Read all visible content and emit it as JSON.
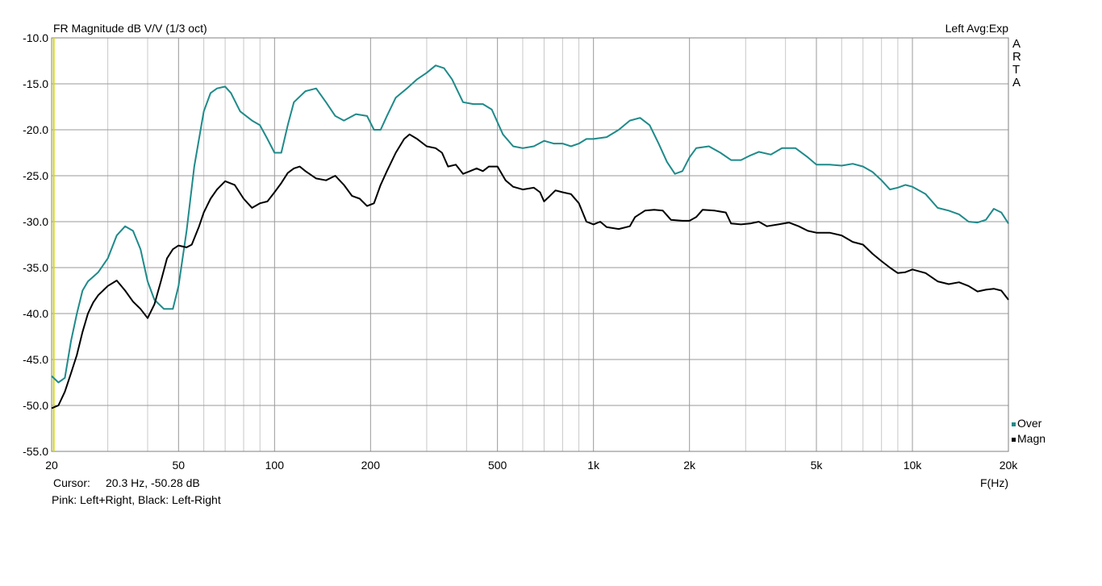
{
  "header": {
    "title": "FR Magnitude dB V/V (1/3 oct)",
    "right_info": "Left  Avg:Exp"
  },
  "brand": [
    "A",
    "R",
    "T",
    "A"
  ],
  "footer": {
    "cursor_label": "Cursor:",
    "cursor_value": "20.3 Hz, -50.28 dB",
    "note": "Pink: Left+Right, Black: Left-Right"
  },
  "legend": [
    {
      "name": "Over",
      "color": "#1f8a8a"
    },
    {
      "name": "Magn",
      "color": "#000000"
    }
  ],
  "chart_data": {
    "type": "line",
    "title": "FR Magnitude dB V/V (1/3 oct)",
    "xlabel": "F(Hz)",
    "ylabel": "",
    "x_scale": "log",
    "xlim": [
      20,
      20000
    ],
    "ylim": [
      -55,
      -10
    ],
    "grid": true,
    "legend_position": "bottom-right",
    "x_ticks": [
      20,
      50,
      100,
      200,
      500,
      1000,
      2000,
      5000,
      10000,
      20000
    ],
    "x_tick_labels": [
      "20",
      "50",
      "100",
      "200",
      "500",
      "1k",
      "2k",
      "5k",
      "10k",
      "20k"
    ],
    "y_ticks": [
      -10,
      -15,
      -20,
      -25,
      -30,
      -35,
      -40,
      -45,
      -50,
      -55
    ],
    "y_tick_labels": [
      "-10.0",
      "-15.0",
      "-20.0",
      "-25.0",
      "-30.0",
      "-35.0",
      "-40.0",
      "-45.0",
      "-50.0",
      "-55.0"
    ],
    "cursor": {
      "x": 20.3,
      "color": "#d8d800"
    },
    "series": [
      {
        "name": "Over",
        "color": "#1f8a8a",
        "points": [
          [
            20,
            -46.8
          ],
          [
            21,
            -47.5
          ],
          [
            22,
            -47.0
          ],
          [
            23,
            -43.0
          ],
          [
            24,
            -40.0
          ],
          [
            25,
            -37.5
          ],
          [
            26,
            -36.5
          ],
          [
            28,
            -35.5
          ],
          [
            30,
            -34.0
          ],
          [
            32,
            -31.5
          ],
          [
            34,
            -30.5
          ],
          [
            36,
            -31.0
          ],
          [
            38,
            -33.0
          ],
          [
            40,
            -36.5
          ],
          [
            42,
            -38.5
          ],
          [
            45,
            -39.5
          ],
          [
            48,
            -39.5
          ],
          [
            50,
            -37.0
          ],
          [
            53,
            -31.0
          ],
          [
            56,
            -24.0
          ],
          [
            60,
            -18.0
          ],
          [
            63,
            -16.0
          ],
          [
            66,
            -15.5
          ],
          [
            70,
            -15.3
          ],
          [
            73,
            -16.0
          ],
          [
            78,
            -18.0
          ],
          [
            85,
            -19.0
          ],
          [
            90,
            -19.5
          ],
          [
            95,
            -21.0
          ],
          [
            100,
            -22.5
          ],
          [
            105,
            -22.5
          ],
          [
            110,
            -19.5
          ],
          [
            115,
            -17.0
          ],
          [
            125,
            -15.8
          ],
          [
            135,
            -15.5
          ],
          [
            145,
            -17.0
          ],
          [
            155,
            -18.5
          ],
          [
            165,
            -19.0
          ],
          [
            180,
            -18.3
          ],
          [
            195,
            -18.5
          ],
          [
            205,
            -20.0
          ],
          [
            215,
            -20.0
          ],
          [
            225,
            -18.5
          ],
          [
            240,
            -16.5
          ],
          [
            260,
            -15.5
          ],
          [
            280,
            -14.5
          ],
          [
            300,
            -13.8
          ],
          [
            320,
            -13.0
          ],
          [
            340,
            -13.3
          ],
          [
            360,
            -14.5
          ],
          [
            390,
            -17.0
          ],
          [
            420,
            -17.2
          ],
          [
            450,
            -17.2
          ],
          [
            480,
            -17.8
          ],
          [
            520,
            -20.5
          ],
          [
            560,
            -21.8
          ],
          [
            600,
            -22.0
          ],
          [
            650,
            -21.8
          ],
          [
            700,
            -21.2
          ],
          [
            750,
            -21.5
          ],
          [
            800,
            -21.5
          ],
          [
            850,
            -21.8
          ],
          [
            900,
            -21.5
          ],
          [
            950,
            -21.0
          ],
          [
            1000,
            -21.0
          ],
          [
            1100,
            -20.8
          ],
          [
            1200,
            -20.0
          ],
          [
            1300,
            -19.0
          ],
          [
            1400,
            -18.7
          ],
          [
            1500,
            -19.5
          ],
          [
            1600,
            -21.5
          ],
          [
            1700,
            -23.5
          ],
          [
            1800,
            -24.8
          ],
          [
            1900,
            -24.5
          ],
          [
            2000,
            -23.0
          ],
          [
            2100,
            -22.0
          ],
          [
            2300,
            -21.8
          ],
          [
            2500,
            -22.5
          ],
          [
            2700,
            -23.3
          ],
          [
            2900,
            -23.3
          ],
          [
            3100,
            -22.8
          ],
          [
            3300,
            -22.4
          ],
          [
            3600,
            -22.7
          ],
          [
            3900,
            -22.0
          ],
          [
            4300,
            -22.0
          ],
          [
            4700,
            -23.0
          ],
          [
            5000,
            -23.8
          ],
          [
            5500,
            -23.8
          ],
          [
            6000,
            -23.9
          ],
          [
            6500,
            -23.7
          ],
          [
            7000,
            -24.0
          ],
          [
            7500,
            -24.6
          ],
          [
            8000,
            -25.5
          ],
          [
            8500,
            -26.5
          ],
          [
            9000,
            -26.3
          ],
          [
            9500,
            -26.0
          ],
          [
            10000,
            -26.2
          ],
          [
            11000,
            -27.0
          ],
          [
            12000,
            -28.5
          ],
          [
            13000,
            -28.8
          ],
          [
            14000,
            -29.2
          ],
          [
            15000,
            -30.0
          ],
          [
            16000,
            -30.1
          ],
          [
            17000,
            -29.8
          ],
          [
            18000,
            -28.6
          ],
          [
            19000,
            -29.0
          ],
          [
            20000,
            -30.2
          ]
        ]
      },
      {
        "name": "Magn",
        "color": "#000000",
        "points": [
          [
            20,
            -50.3
          ],
          [
            21,
            -50.0
          ],
          [
            22,
            -48.5
          ],
          [
            23,
            -46.5
          ],
          [
            24,
            -44.5
          ],
          [
            25,
            -42.0
          ],
          [
            26,
            -40.0
          ],
          [
            27,
            -38.8
          ],
          [
            28,
            -38.0
          ],
          [
            30,
            -37.0
          ],
          [
            32,
            -36.4
          ],
          [
            34,
            -37.5
          ],
          [
            36,
            -38.7
          ],
          [
            38,
            -39.5
          ],
          [
            40,
            -40.5
          ],
          [
            42,
            -39.0
          ],
          [
            44,
            -36.5
          ],
          [
            46,
            -34.0
          ],
          [
            48,
            -33.0
          ],
          [
            50,
            -32.6
          ],
          [
            53,
            -32.8
          ],
          [
            55,
            -32.5
          ],
          [
            58,
            -30.5
          ],
          [
            60,
            -29.0
          ],
          [
            63,
            -27.5
          ],
          [
            66,
            -26.5
          ],
          [
            70,
            -25.6
          ],
          [
            75,
            -26.0
          ],
          [
            80,
            -27.5
          ],
          [
            85,
            -28.5
          ],
          [
            90,
            -28.0
          ],
          [
            95,
            -27.8
          ],
          [
            100,
            -26.8
          ],
          [
            105,
            -25.8
          ],
          [
            110,
            -24.7
          ],
          [
            115,
            -24.2
          ],
          [
            120,
            -24.0
          ],
          [
            125,
            -24.5
          ],
          [
            135,
            -25.3
          ],
          [
            145,
            -25.5
          ],
          [
            155,
            -25.0
          ],
          [
            165,
            -26.0
          ],
          [
            175,
            -27.2
          ],
          [
            185,
            -27.5
          ],
          [
            195,
            -28.3
          ],
          [
            205,
            -28.0
          ],
          [
            215,
            -26.0
          ],
          [
            225,
            -24.5
          ],
          [
            240,
            -22.5
          ],
          [
            255,
            -21.0
          ],
          [
            265,
            -20.5
          ],
          [
            280,
            -21.0
          ],
          [
            300,
            -21.8
          ],
          [
            320,
            -22.0
          ],
          [
            335,
            -22.5
          ],
          [
            350,
            -24.0
          ],
          [
            370,
            -23.8
          ],
          [
            390,
            -24.8
          ],
          [
            410,
            -24.5
          ],
          [
            430,
            -24.2
          ],
          [
            450,
            -24.5
          ],
          [
            470,
            -24.0
          ],
          [
            500,
            -24.0
          ],
          [
            530,
            -25.5
          ],
          [
            560,
            -26.2
          ],
          [
            600,
            -26.5
          ],
          [
            650,
            -26.3
          ],
          [
            680,
            -26.8
          ],
          [
            700,
            -27.8
          ],
          [
            730,
            -27.2
          ],
          [
            760,
            -26.6
          ],
          [
            800,
            -26.8
          ],
          [
            850,
            -27.0
          ],
          [
            900,
            -28.0
          ],
          [
            950,
            -30.0
          ],
          [
            1000,
            -30.3
          ],
          [
            1050,
            -30.0
          ],
          [
            1100,
            -30.6
          ],
          [
            1200,
            -30.8
          ],
          [
            1300,
            -30.5
          ],
          [
            1350,
            -29.5
          ],
          [
            1450,
            -28.8
          ],
          [
            1550,
            -28.7
          ],
          [
            1650,
            -28.8
          ],
          [
            1750,
            -29.8
          ],
          [
            1900,
            -29.9
          ],
          [
            2000,
            -29.9
          ],
          [
            2100,
            -29.5
          ],
          [
            2200,
            -28.7
          ],
          [
            2400,
            -28.8
          ],
          [
            2600,
            -29.0
          ],
          [
            2700,
            -30.2
          ],
          [
            2900,
            -30.3
          ],
          [
            3100,
            -30.2
          ],
          [
            3300,
            -30.0
          ],
          [
            3500,
            -30.5
          ],
          [
            3800,
            -30.3
          ],
          [
            4100,
            -30.1
          ],
          [
            4400,
            -30.5
          ],
          [
            4700,
            -31.0
          ],
          [
            5000,
            -31.2
          ],
          [
            5500,
            -31.2
          ],
          [
            6000,
            -31.5
          ],
          [
            6500,
            -32.2
          ],
          [
            7000,
            -32.5
          ],
          [
            7500,
            -33.5
          ],
          [
            8000,
            -34.3
          ],
          [
            8500,
            -35.0
          ],
          [
            9000,
            -35.6
          ],
          [
            9500,
            -35.5
          ],
          [
            10000,
            -35.2
          ],
          [
            11000,
            -35.6
          ],
          [
            12000,
            -36.5
          ],
          [
            13000,
            -36.8
          ],
          [
            14000,
            -36.6
          ],
          [
            15000,
            -37.0
          ],
          [
            16000,
            -37.6
          ],
          [
            17000,
            -37.4
          ],
          [
            18000,
            -37.3
          ],
          [
            19000,
            -37.5
          ],
          [
            20000,
            -38.5
          ]
        ]
      }
    ]
  }
}
